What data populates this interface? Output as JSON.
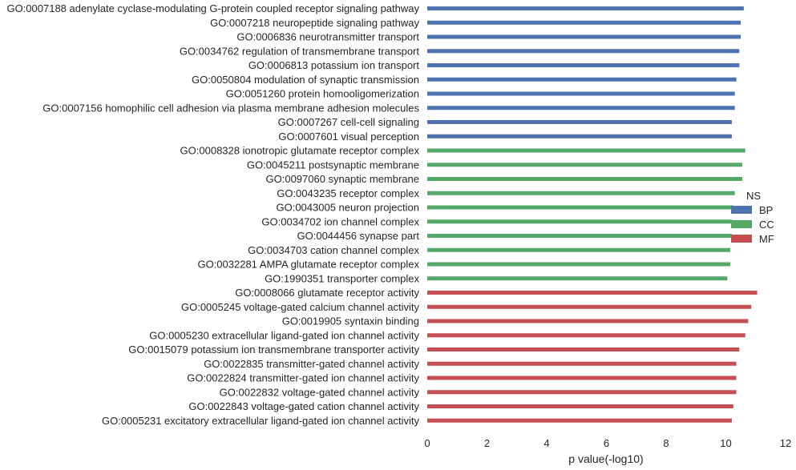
{
  "chart_data": {
    "type": "bar",
    "orientation": "horizontal",
    "xlabel": "p value(-log10)",
    "ylabel": "",
    "xlim": [
      0,
      12
    ],
    "xticks": [
      0,
      2,
      4,
      6,
      8,
      10,
      12
    ],
    "grid": false,
    "legend": {
      "title": "NS",
      "placement": "right",
      "entries": [
        {
          "name": "BP",
          "color": "#4c72b0"
        },
        {
          "name": "CC",
          "color": "#55a868"
        },
        {
          "name": "MF",
          "color": "#c44e52"
        }
      ]
    },
    "bars": [
      {
        "label": "GO:0007188 adenylate cyclase-modulating G-protein coupled receptor signaling pathway",
        "value": 10.6,
        "group": "BP"
      },
      {
        "label": "GO:0007218 neuropeptide signaling pathway",
        "value": 10.5,
        "group": "BP"
      },
      {
        "label": "GO:0006836 neurotransmitter transport",
        "value": 10.5,
        "group": "BP"
      },
      {
        "label": "GO:0034762 regulation of transmembrane transport",
        "value": 10.45,
        "group": "BP"
      },
      {
        "label": "GO:0006813 potassium ion transport",
        "value": 10.45,
        "group": "BP"
      },
      {
        "label": "GO:0050804 modulation of synaptic transmission",
        "value": 10.35,
        "group": "BP"
      },
      {
        "label": "GO:0051260 protein homooligomerization",
        "value": 10.3,
        "group": "BP"
      },
      {
        "label": "GO:0007156 homophilic cell adhesion via plasma membrane adhesion molecules",
        "value": 10.3,
        "group": "BP"
      },
      {
        "label": "GO:0007267 cell-cell signaling",
        "value": 10.2,
        "group": "BP"
      },
      {
        "label": "GO:0007601 visual perception",
        "value": 10.2,
        "group": "BP"
      },
      {
        "label": "GO:0008328 ionotropic glutamate receptor complex",
        "value": 10.65,
        "group": "CC"
      },
      {
        "label": "GO:0045211 postsynaptic membrane",
        "value": 10.55,
        "group": "CC"
      },
      {
        "label": "GO:0097060 synaptic membrane",
        "value": 10.55,
        "group": "CC"
      },
      {
        "label": "GO:0043235 receptor complex",
        "value": 10.3,
        "group": "CC"
      },
      {
        "label": "GO:0043005 neuron projection",
        "value": 10.25,
        "group": "CC"
      },
      {
        "label": "GO:0034702 ion channel complex",
        "value": 10.2,
        "group": "CC"
      },
      {
        "label": "GO:0044456 synapse part",
        "value": 10.2,
        "group": "CC"
      },
      {
        "label": "GO:0034703 cation channel complex",
        "value": 10.15,
        "group": "CC"
      },
      {
        "label": "GO:0032281 AMPA glutamate receptor complex",
        "value": 10.15,
        "group": "CC"
      },
      {
        "label": "GO:1990351 transporter complex",
        "value": 10.05,
        "group": "CC"
      },
      {
        "label": "GO:0008066 glutamate receptor activity",
        "value": 11.05,
        "group": "MF"
      },
      {
        "label": "GO:0005245 voltage-gated calcium channel activity",
        "value": 10.85,
        "group": "MF"
      },
      {
        "label": "GO:0019905 syntaxin binding",
        "value": 10.75,
        "group": "MF"
      },
      {
        "label": "GO:0005230 extracellular ligand-gated ion channel activity",
        "value": 10.65,
        "group": "MF"
      },
      {
        "label": "GO:0015079 potassium ion transmembrane transporter activity",
        "value": 10.45,
        "group": "MF"
      },
      {
        "label": "GO:0022835 transmitter-gated channel activity",
        "value": 10.35,
        "group": "MF"
      },
      {
        "label": "GO:0022824 transmitter-gated ion channel activity",
        "value": 10.35,
        "group": "MF"
      },
      {
        "label": "GO:0022832 voltage-gated channel activity",
        "value": 10.35,
        "group": "MF"
      },
      {
        "label": "GO:0022843 voltage-gated cation channel activity",
        "value": 10.25,
        "group": "MF"
      },
      {
        "label": "GO:0005231 excitatory extracellular ligand-gated ion channel activity",
        "value": 10.2,
        "group": "MF"
      }
    ]
  }
}
